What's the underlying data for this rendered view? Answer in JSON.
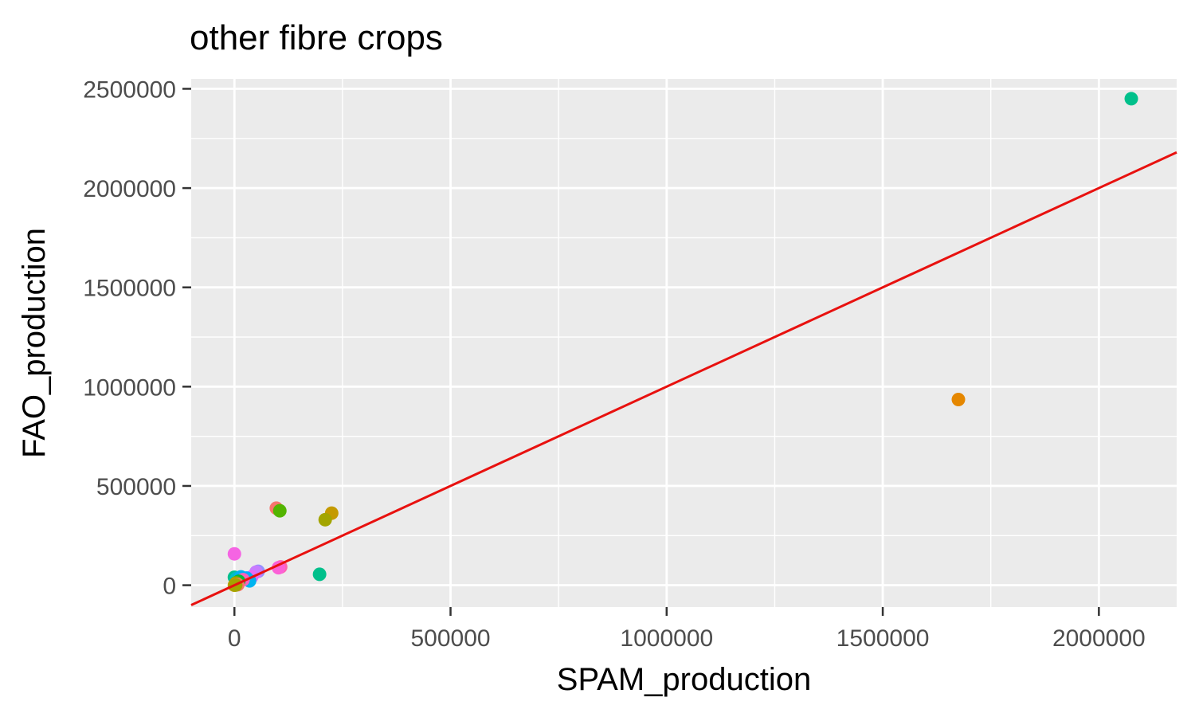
{
  "chart_data": {
    "type": "scatter",
    "title": "other fibre crops",
    "xlabel": "SPAM_production",
    "ylabel": "FAO_production",
    "xlim": [
      -100000,
      2180000
    ],
    "ylim": [
      -110000,
      2550000
    ],
    "x_ticks": [
      0,
      500000,
      1000000,
      1500000,
      2000000
    ],
    "x_tick_labels": [
      "0",
      "500000",
      "1000000",
      "1500000",
      "2000000"
    ],
    "y_ticks": [
      0,
      500000,
      1000000,
      1500000,
      2000000,
      2500000
    ],
    "y_tick_labels": [
      "0",
      "500000",
      "1000000",
      "1500000",
      "2000000",
      "2500000"
    ],
    "grid": true,
    "legend": "none",
    "reference_line": {
      "slope": 1,
      "intercept": 0,
      "color": "#e8110f"
    },
    "colors": {
      "panel": "#ebebeb",
      "grid": "#ffffff",
      "tick": "#333333"
    },
    "points": [
      {
        "x": 2075000,
        "y": 2450000,
        "color": "#00c08b"
      },
      {
        "x": 1675000,
        "y": 935000,
        "color": "#e58700"
      },
      {
        "x": 97000,
        "y": 388000,
        "color": "#f8766d"
      },
      {
        "x": 105000,
        "y": 375000,
        "color": "#53b400"
      },
      {
        "x": 225000,
        "y": 363000,
        "color": "#c49a00"
      },
      {
        "x": 210000,
        "y": 330000,
        "color": "#a3a500"
      },
      {
        "x": 0,
        "y": 158000,
        "color": "#f564e3"
      },
      {
        "x": 197000,
        "y": 55000,
        "color": "#00c08b"
      },
      {
        "x": 107000,
        "y": 92000,
        "color": "#ff64b0"
      },
      {
        "x": 102000,
        "y": 88000,
        "color": "#fb61d7"
      },
      {
        "x": 55000,
        "y": 70000,
        "color": "#9590ff"
      },
      {
        "x": 50000,
        "y": 66000,
        "color": "#c77cff"
      },
      {
        "x": 40000,
        "y": 42000,
        "color": "#e76bf3"
      },
      {
        "x": 28000,
        "y": 36000,
        "color": "#00a9ff"
      },
      {
        "x": 35000,
        "y": 22000,
        "color": "#00b4f0"
      },
      {
        "x": 0,
        "y": 40000,
        "color": "#00c08b"
      },
      {
        "x": 5000,
        "y": 35000,
        "color": "#00bfc4"
      },
      {
        "x": 15000,
        "y": 42000,
        "color": "#00b0f6"
      },
      {
        "x": 20000,
        "y": 28000,
        "color": "#ff62bc"
      },
      {
        "x": 10000,
        "y": 20000,
        "color": "#00ba38"
      },
      {
        "x": 4000,
        "y": 12000,
        "color": "#7cae00"
      },
      {
        "x": 2000,
        "y": 5000,
        "color": "#de8c00"
      },
      {
        "x": 8000,
        "y": 3000,
        "color": "#f8766d"
      },
      {
        "x": 0,
        "y": 0,
        "color": "#b79f00"
      },
      {
        "x": 3000,
        "y": 1000,
        "color": "#a3a500"
      }
    ]
  }
}
